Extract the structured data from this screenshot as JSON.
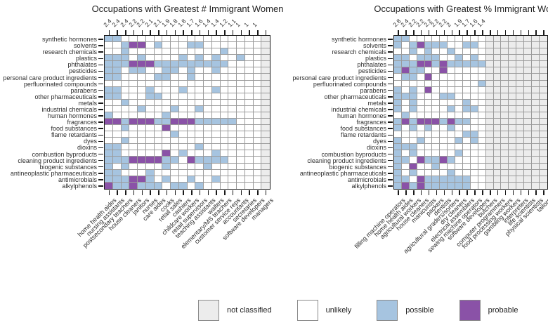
{
  "page": {
    "background": "#ffffff"
  },
  "legend": {
    "items": [
      {
        "code": "G",
        "label": "not classified",
        "color": "#ececec"
      },
      {
        "code": "W",
        "label": "unlikely",
        "color": "#ffffff"
      },
      {
        "code": "B",
        "label": "possible",
        "color": "#a6c4e0"
      },
      {
        "code": "P",
        "label": "probable",
        "color": "#8a52a7"
      }
    ]
  },
  "chart_data": [
    {
      "type": "heatmap",
      "title": "Occupations with Greatest # Immigrant Women",
      "cell_code_meaning": {
        "G": "not classified",
        "W": "unlikely",
        "B": "possible",
        "P": "probable"
      },
      "rows": [
        "synthetic hormones",
        "solvents",
        "research chemicals",
        "plastics",
        "phthalates",
        "pesticides",
        "personal care product ingredients",
        "perfluorinated compounds",
        "parabens",
        "other pharmaceuticals",
        "metals",
        "industrial chemicals",
        "human hormones",
        "fragrances",
        "food substances",
        "flame retardants",
        "dyes",
        "dioxins",
        "combustion byproducts",
        "cleaning product ingredients",
        "biogenic substances",
        "antineoplastic pharmaceuticals",
        "antimicrobials",
        "alkylphenols"
      ],
      "columns": [
        "home health aides",
        "nursing assistants",
        "postsecondary teachers",
        "house cleaners",
        "janitors",
        "nurses",
        "care aides",
        "cooks",
        "retail sales",
        "cashiers",
        "childcare workers",
        "retail supervisors",
        "teaching assistants",
        "waiters",
        "elementary/MS teachers",
        "customer service reps",
        "accountants",
        "secretaries",
        "software developers",
        "managers"
      ],
      "column_values": [
        2.4,
        2.4,
        2.4,
        2.2,
        2.2,
        2.1,
        2.1,
        1.9,
        1.8,
        1.8,
        1.7,
        1.6,
        1.4,
        1.4,
        1.2,
        1.1,
        1,
        1,
        1,
        null
      ],
      "cells": [
        "BBWWWWWWWWWWWWWWWWWG",
        "WWBPPWBWWWBBWWWWWWWG",
        "WWBWWWWWWWWWWWBWWWWG",
        "BBBWBWWWWBWBWBWWBWWG",
        "BBBPPPBBBBBBBBBWWWWG",
        "BBWBBWWBBWBWWBWWWWWG",
        "BBWWWWBBWWBWWWWWWWWG",
        "WWWWWWWWWWWWWWWWWWWG",
        "BBWWWBWWWBWWWBWWWWWG",
        "BBWWWBBWWWWWWWWWWWWG",
        "WWBWWWWWWWWWWWWWWWWG",
        "WWWWBWWWBWWBWWWWWWWG",
        "BWWWWWWBWWWWWWWWWWWG",
        "PPBPPPBBPPPBBBBBWWWG",
        "WWBWWWWPWWWWWWWWWWWG",
        "WWWWWWWWBWWWWWWWWWWG",
        "WWBWWWWWWWWWWWWWWWWG",
        "BBWWWWWWWWWBWWWWWWWG",
        "BBWWWWWPWBWWWBWWWWWG",
        "BBBPPPPBBWPBBBBWWWWG",
        "BWBWWWWBWWWWBWWWWWWG",
        "BBWWWBWWWWWWWWWWWWWG",
        "BBBPPBWBWWBWWBWWWWWG",
        "PBBPBBBWBBWBWWWWWWWG"
      ]
    },
    {
      "type": "heatmap",
      "title": "Occupations with Greatest % Immigrant Women",
      "cell_code_meaning": {
        "G": "not classified",
        "W": "unlikely",
        "B": "possible",
        "P": "probable"
      },
      "rows": [
        "synthetic hormones",
        "solvents",
        "research chemicals",
        "plastics",
        "phthalates",
        "pesticides",
        "personal care product ingredients",
        "perfluorinated compounds",
        "parabens",
        "other pharmaceuticals",
        "metals",
        "industrial chemicals",
        "human hormones",
        "fragrances",
        "food substances",
        "flame retardants",
        "dyes",
        "dioxins",
        "combustion byproducts",
        "cleaning product ingredients",
        "biogenic substances",
        "antineoplastic pharmaceuticals",
        "antimicrobials",
        "alkylphenols"
      ],
      "columns": [
        "filling machine operators",
        "home health aides",
        "agricultural workers",
        "house cleaners",
        "manicurists",
        "packers",
        "dentists",
        "agricultural graders/sorters",
        "dry cleaners",
        "electrical assemblers",
        "sewing machine operators",
        "software developers",
        "butchers",
        "computer programmers",
        "food processing workers",
        "gambling workers",
        "interpreters",
        "life scientists",
        "physical scientists",
        "tailors"
      ],
      "column_values": [
        2.8,
        2.4,
        2.2,
        2.2,
        2.2,
        2.2,
        2.2,
        2,
        1.9,
        1.7,
        1.6,
        1.4,
        null,
        null,
        null,
        null,
        null,
        null,
        null,
        null
      ],
      "cells": [
        "BBWWWWWWWWWWGGGGGGGG",
        "BWBPBBBWWBBWGGGGGGGG",
        "WWBWBWWBWWWWGGGGGGGG",
        "BBWBBBWWBWBWGGGGGGGG",
        "BBBPPBPBBBBBGGGGGGGG",
        "BPBBWWPWWWWWGGGGGGGG",
        "WBBWPWWWWWWWGGGGGGGG",
        "WWWWWWWWWWWBGGGGGGGG",
        "BWBWPWWWWWWWGGGGGGGG",
        "BBBWWWBBWWWWGGGGGGGG",
        "BWBWWWWWWBWWGGGGGGGG",
        "BWBWWWWBWBBWGGGGGGGG",
        "WBWWWWWWWWWWGGGGGGGG",
        "BPBPPPBPBBWWGGGGGGGG",
        "BWBWBWWBWWWWGGGGGGGG",
        "WWWWWWWWWBBWGGGGGGGG",
        "BWWBWWWWBWBWGGGGGGGG",
        "BBBWWWWWWWWWGGGGGGGG",
        "BWBWWWWWBWWWGGGGGGGG",
        "BBWPBBPBWWWWGGGGGGGG",
        "BWPWWBWWWWWWGGGGGGGG",
        "BWBWWWWBWWWWGGGGGGGG",
        "BBWPBBBBBBWWGGGGGGGG",
        "BPBPBBBBBBWWGGGGGGGG"
      ]
    }
  ]
}
